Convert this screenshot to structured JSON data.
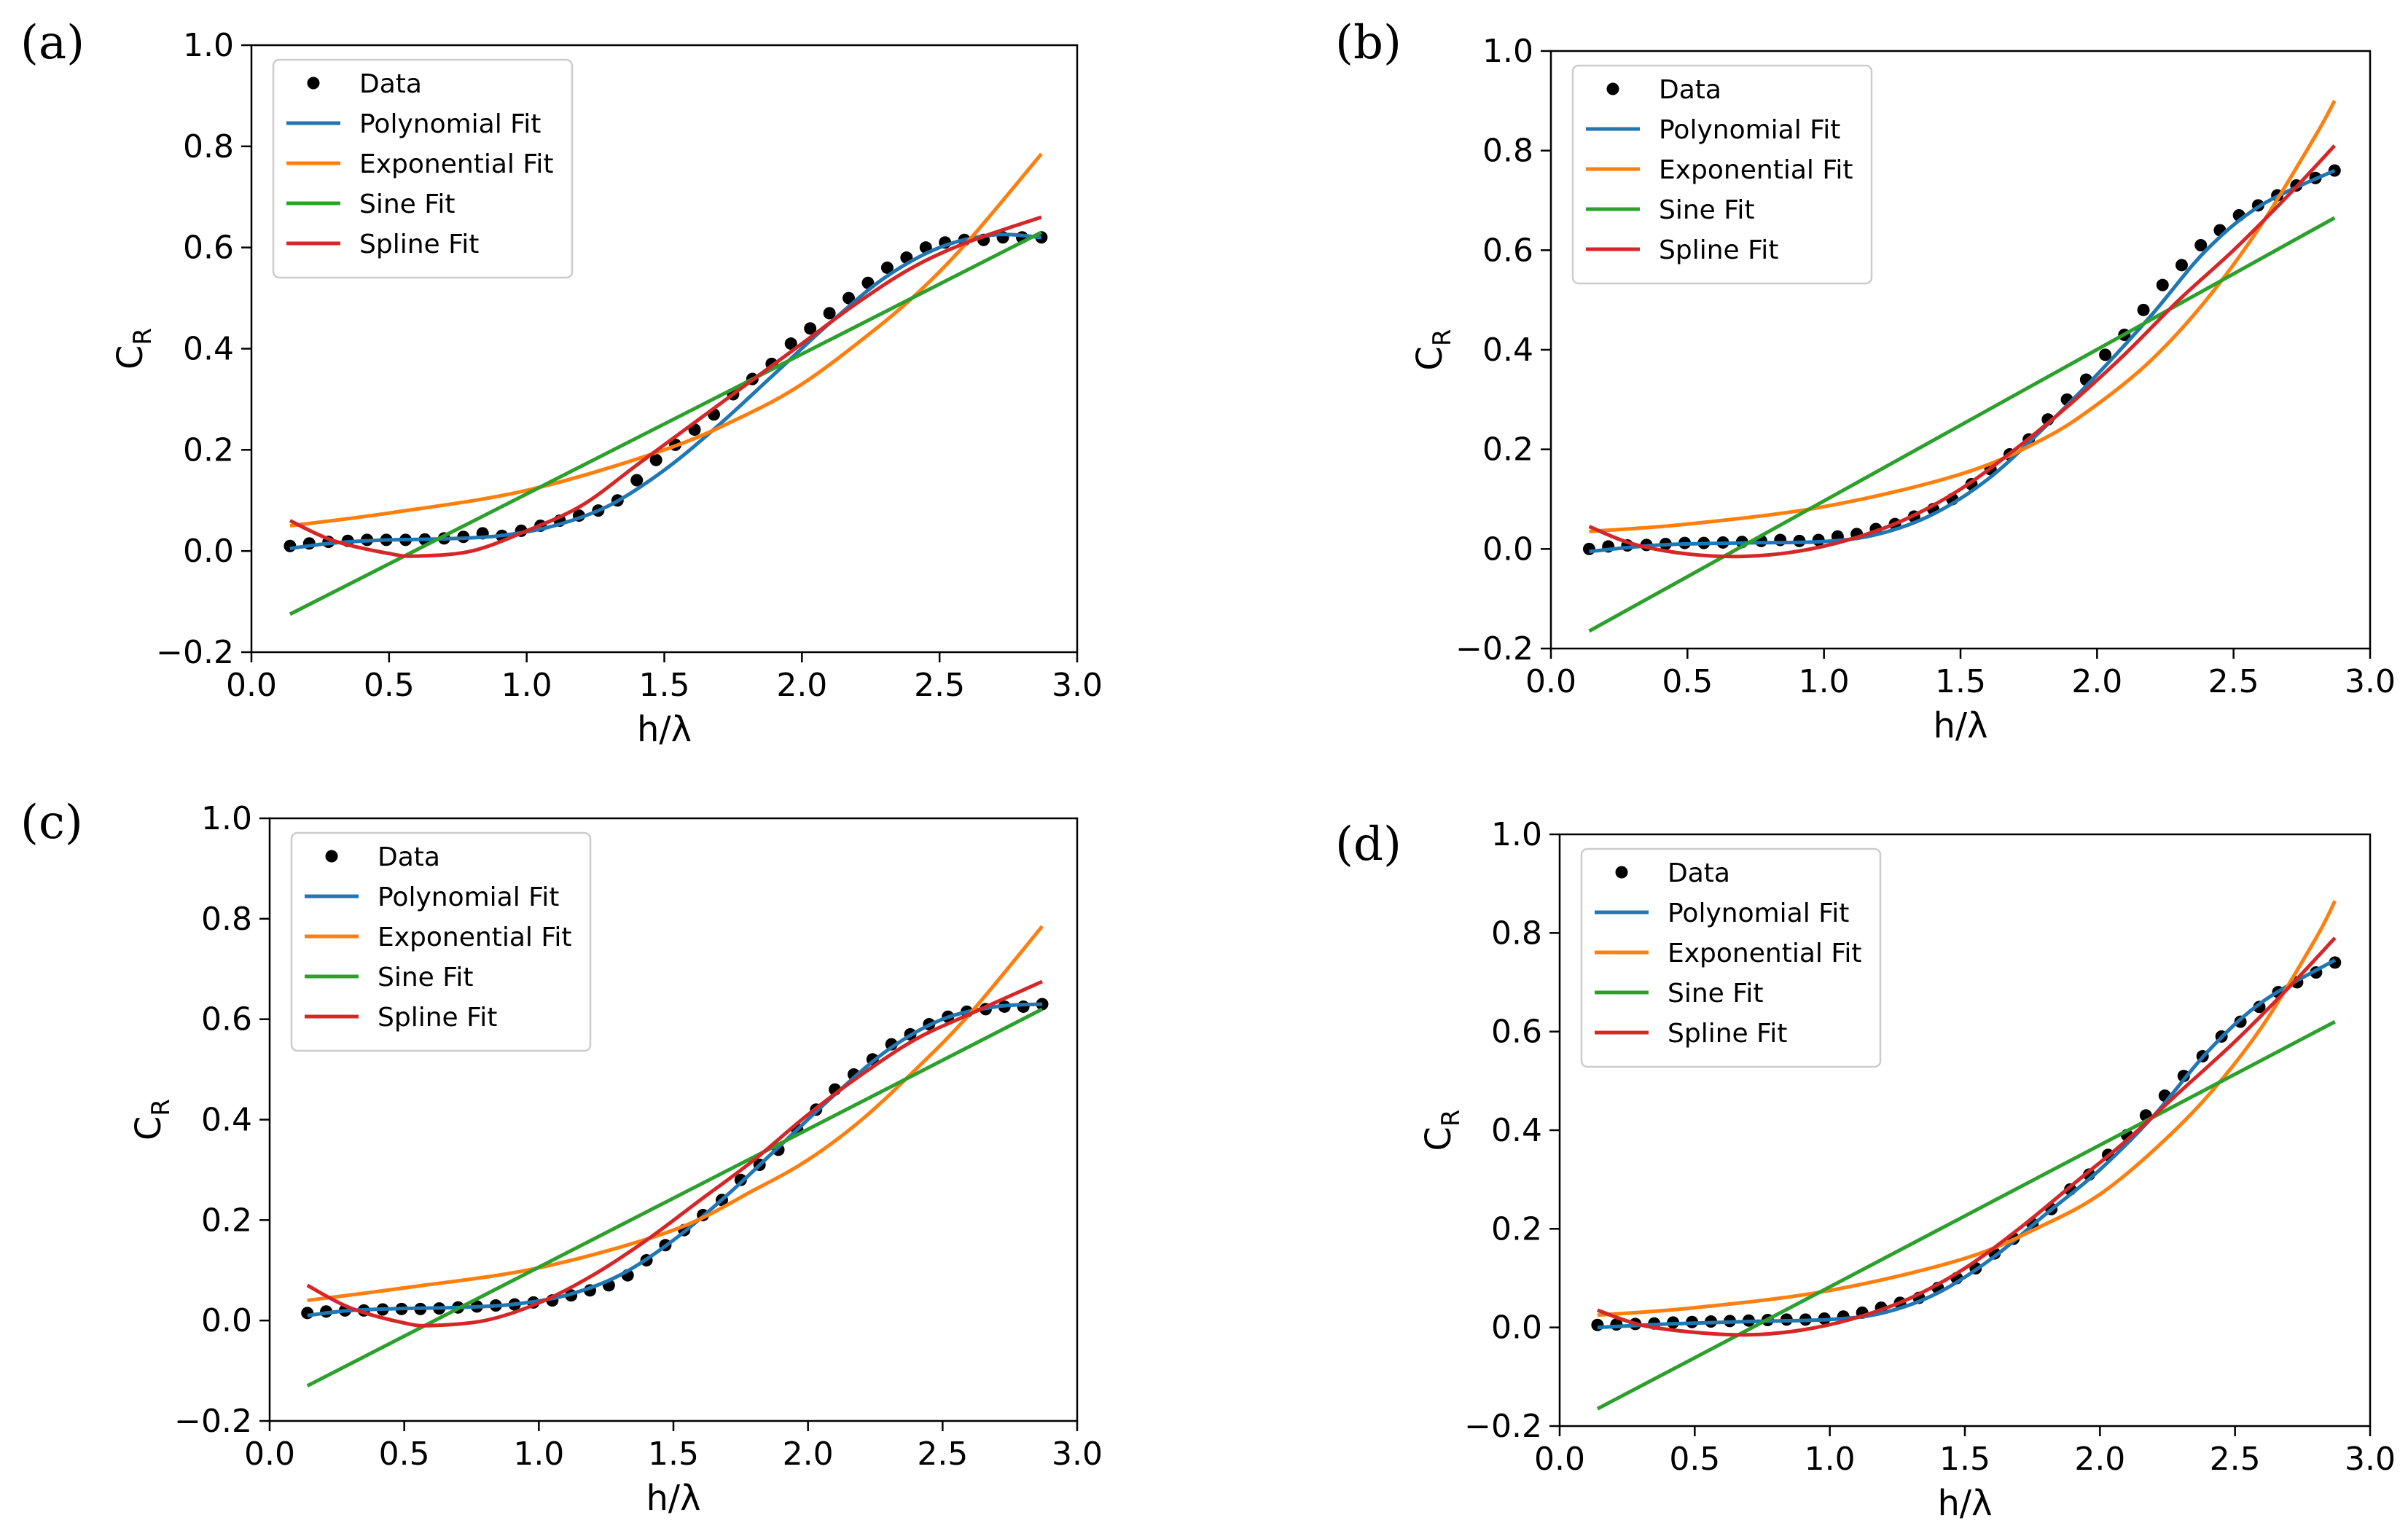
{
  "colors": {
    "data": "#000000",
    "polynomial": "#1f77b4",
    "exponential": "#ff7f0e",
    "sine": "#2ca02c",
    "spline": "#d62728",
    "legend_border": "#cccccc"
  },
  "chart_data": [
    {
      "panel": "(a)",
      "type": "line",
      "xlabel": "h/λ",
      "ylabel_main": "C",
      "ylabel_sub": "R",
      "xlim": [
        0.0,
        3.0
      ],
      "ylim": [
        -0.2,
        1.0
      ],
      "xticks": [
        0.0,
        0.5,
        1.0,
        1.5,
        2.0,
        2.5,
        3.0
      ],
      "yticks": [
        -0.2,
        0.0,
        0.2,
        0.4,
        0.6,
        0.8,
        1.0
      ],
      "xtick_labels": [
        "0.0",
        "0.5",
        "1.0",
        "1.5",
        "2.0",
        "2.5",
        "3.0"
      ],
      "ytick_labels": [
        "−0.2",
        "0.0",
        "0.2",
        "0.4",
        "0.6",
        "0.8",
        "1.0"
      ],
      "legend": [
        "Data",
        "Polynomial Fit",
        "Exponential Fit",
        "Sine Fit",
        "Spline Fit"
      ],
      "legend_position": "upper-left",
      "data_x": [
        0.14,
        0.21,
        0.28,
        0.35,
        0.42,
        0.49,
        0.56,
        0.63,
        0.7,
        0.77,
        0.84,
        0.91,
        0.98,
        1.05,
        1.12,
        1.19,
        1.26,
        1.33,
        1.4,
        1.47,
        1.54,
        1.61,
        1.68,
        1.75,
        1.82,
        1.89,
        1.96,
        2.03,
        2.1,
        2.17,
        2.24,
        2.31,
        2.38,
        2.45,
        2.52,
        2.59,
        2.66,
        2.73,
        2.8,
        2.87
      ],
      "data_y": [
        0.01,
        0.015,
        0.018,
        0.02,
        0.022,
        0.022,
        0.022,
        0.023,
        0.025,
        0.028,
        0.035,
        0.03,
        0.04,
        0.05,
        0.06,
        0.07,
        0.08,
        0.1,
        0.14,
        0.18,
        0.21,
        0.24,
        0.27,
        0.31,
        0.34,
        0.37,
        0.41,
        0.44,
        0.47,
        0.5,
        0.53,
        0.56,
        0.58,
        0.6,
        0.61,
        0.615,
        0.615,
        0.62,
        0.62,
        0.62
      ],
      "series": [
        {
          "name": "Polynomial Fit",
          "x": [
            0.14,
            0.3,
            0.5,
            0.7,
            0.9,
            1.1,
            1.3,
            1.5,
            1.7,
            1.9,
            2.1,
            2.3,
            2.5,
            2.7,
            2.87
          ],
          "y": [
            0.005,
            0.016,
            0.022,
            0.024,
            0.03,
            0.05,
            0.09,
            0.16,
            0.25,
            0.35,
            0.45,
            0.54,
            0.6,
            0.625,
            0.62
          ]
        },
        {
          "name": "Exponential Fit",
          "x": [
            0.14,
            0.5,
            1.0,
            1.5,
            1.8,
            2.0,
            2.2,
            2.4,
            2.6,
            2.87
          ],
          "y": [
            0.05,
            0.075,
            0.12,
            0.2,
            0.27,
            0.33,
            0.41,
            0.5,
            0.61,
            0.785
          ]
        },
        {
          "name": "Sine Fit",
          "x": [
            0.14,
            2.87
          ],
          "y": [
            -0.125,
            0.63
          ]
        },
        {
          "name": "Spline Fit",
          "x": [
            0.14,
            0.3,
            0.5,
            0.6,
            0.8,
            1.0,
            1.2,
            1.4,
            1.6,
            1.8,
            2.0,
            2.2,
            2.4,
            2.6,
            2.87
          ],
          "y": [
            0.06,
            0.02,
            -0.005,
            -0.01,
            0.0,
            0.04,
            0.09,
            0.17,
            0.25,
            0.33,
            0.41,
            0.49,
            0.56,
            0.61,
            0.66
          ]
        }
      ]
    },
    {
      "panel": "(b)",
      "type": "line",
      "xlabel": "h/λ",
      "ylabel_main": "C",
      "ylabel_sub": "R",
      "xlim": [
        0.0,
        3.0
      ],
      "ylim": [
        -0.2,
        1.0
      ],
      "xticks": [
        0.0,
        0.5,
        1.0,
        1.5,
        2.0,
        2.5,
        3.0
      ],
      "yticks": [
        -0.2,
        0.0,
        0.2,
        0.4,
        0.6,
        0.8,
        1.0
      ],
      "xtick_labels": [
        "0.0",
        "0.5",
        "1.0",
        "1.5",
        "2.0",
        "2.5",
        "3.0"
      ],
      "ytick_labels": [
        "−0.2",
        "0.0",
        "0.2",
        "0.4",
        "0.6",
        "0.8",
        "1.0"
      ],
      "legend": [
        "Data",
        "Polynomial Fit",
        "Exponential Fit",
        "Sine Fit",
        "Spline Fit"
      ],
      "legend_position": "upper-left",
      "data_x": [
        0.14,
        0.21,
        0.28,
        0.35,
        0.42,
        0.49,
        0.56,
        0.63,
        0.7,
        0.77,
        0.84,
        0.91,
        0.98,
        1.05,
        1.12,
        1.19,
        1.26,
        1.33,
        1.4,
        1.47,
        1.54,
        1.61,
        1.68,
        1.75,
        1.82,
        1.89,
        1.96,
        2.03,
        2.1,
        2.17,
        2.24,
        2.31,
        2.38,
        2.45,
        2.52,
        2.59,
        2.66,
        2.73,
        2.8,
        2.87
      ],
      "data_y": [
        0.0,
        0.005,
        0.007,
        0.008,
        0.01,
        0.012,
        0.012,
        0.013,
        0.014,
        0.016,
        0.018,
        0.016,
        0.018,
        0.025,
        0.03,
        0.04,
        0.05,
        0.065,
        0.08,
        0.1,
        0.13,
        0.16,
        0.19,
        0.22,
        0.26,
        0.3,
        0.34,
        0.39,
        0.43,
        0.48,
        0.53,
        0.57,
        0.61,
        0.64,
        0.67,
        0.69,
        0.71,
        0.73,
        0.745,
        0.76
      ],
      "series": [
        {
          "name": "Polynomial Fit",
          "x": [
            0.14,
            0.4,
            0.7,
            1.0,
            1.2,
            1.4,
            1.6,
            1.8,
            2.0,
            2.2,
            2.4,
            2.6,
            2.87
          ],
          "y": [
            -0.005,
            0.008,
            0.012,
            0.015,
            0.03,
            0.07,
            0.14,
            0.24,
            0.35,
            0.47,
            0.6,
            0.69,
            0.76
          ]
        },
        {
          "name": "Exponential Fit",
          "x": [
            0.14,
            0.5,
            1.0,
            1.5,
            1.8,
            2.0,
            2.2,
            2.4,
            2.6,
            2.8,
            2.87
          ],
          "y": [
            0.035,
            0.05,
            0.085,
            0.15,
            0.22,
            0.29,
            0.38,
            0.5,
            0.65,
            0.83,
            0.9
          ]
        },
        {
          "name": "Sine Fit",
          "x": [
            0.14,
            2.87
          ],
          "y": [
            -0.165,
            0.665
          ]
        },
        {
          "name": "Spline Fit",
          "x": [
            0.14,
            0.3,
            0.5,
            0.7,
            0.9,
            1.1,
            1.3,
            1.5,
            1.7,
            1.9,
            2.1,
            2.3,
            2.5,
            2.7,
            2.87
          ],
          "y": [
            0.045,
            0.01,
            -0.01,
            -0.015,
            -0.005,
            0.02,
            0.06,
            0.12,
            0.2,
            0.29,
            0.39,
            0.5,
            0.6,
            0.71,
            0.81
          ]
        }
      ]
    },
    {
      "panel": "(c)",
      "type": "line",
      "xlabel": "h/λ",
      "ylabel_main": "C",
      "ylabel_sub": "R",
      "xlim": [
        0.0,
        3.0
      ],
      "ylim": [
        -0.2,
        1.0
      ],
      "xticks": [
        0.0,
        0.5,
        1.0,
        1.5,
        2.0,
        2.5,
        3.0
      ],
      "yticks": [
        -0.2,
        0.0,
        0.2,
        0.4,
        0.6,
        0.8,
        1.0
      ],
      "xtick_labels": [
        "0.0",
        "0.5",
        "1.0",
        "1.5",
        "2.0",
        "2.5",
        "3.0"
      ],
      "ytick_labels": [
        "−0.2",
        "0.0",
        "0.2",
        "0.4",
        "0.6",
        "0.8",
        "1.0"
      ],
      "legend": [
        "Data",
        "Polynomial Fit",
        "Exponential Fit",
        "Sine Fit",
        "Spline Fit"
      ],
      "legend_position": "upper-left",
      "data_x": [
        0.14,
        0.21,
        0.28,
        0.35,
        0.42,
        0.49,
        0.56,
        0.63,
        0.7,
        0.77,
        0.84,
        0.91,
        0.98,
        1.05,
        1.12,
        1.19,
        1.26,
        1.33,
        1.4,
        1.47,
        1.54,
        1.61,
        1.68,
        1.75,
        1.82,
        1.89,
        1.96,
        2.03,
        2.1,
        2.17,
        2.24,
        2.31,
        2.38,
        2.45,
        2.52,
        2.59,
        2.66,
        2.73,
        2.8,
        2.87
      ],
      "data_y": [
        0.015,
        0.018,
        0.02,
        0.02,
        0.022,
        0.023,
        0.023,
        0.024,
        0.026,
        0.028,
        0.03,
        0.032,
        0.036,
        0.04,
        0.05,
        0.06,
        0.07,
        0.09,
        0.12,
        0.15,
        0.18,
        0.21,
        0.24,
        0.28,
        0.31,
        0.34,
        0.38,
        0.42,
        0.46,
        0.49,
        0.52,
        0.55,
        0.57,
        0.59,
        0.605,
        0.615,
        0.62,
        0.625,
        0.625,
        0.63
      ],
      "series": [
        {
          "name": "Polynomial Fit",
          "x": [
            0.14,
            0.3,
            0.5,
            0.7,
            0.9,
            1.1,
            1.3,
            1.5,
            1.7,
            1.9,
            2.1,
            2.3,
            2.5,
            2.7,
            2.87
          ],
          "y": [
            0.01,
            0.02,
            0.024,
            0.026,
            0.032,
            0.05,
            0.09,
            0.16,
            0.25,
            0.35,
            0.45,
            0.54,
            0.6,
            0.625,
            0.63
          ]
        },
        {
          "name": "Exponential Fit",
          "x": [
            0.14,
            0.5,
            1.0,
            1.5,
            1.8,
            2.0,
            2.2,
            2.4,
            2.6,
            2.87
          ],
          "y": [
            0.04,
            0.065,
            0.105,
            0.18,
            0.26,
            0.32,
            0.4,
            0.5,
            0.61,
            0.785
          ]
        },
        {
          "name": "Sine Fit",
          "x": [
            0.14,
            2.87
          ],
          "y": [
            -0.13,
            0.62
          ]
        },
        {
          "name": "Spline Fit",
          "x": [
            0.14,
            0.3,
            0.5,
            0.6,
            0.8,
            1.0,
            1.2,
            1.4,
            1.6,
            1.8,
            2.0,
            2.2,
            2.4,
            2.6,
            2.87
          ],
          "y": [
            0.07,
            0.025,
            -0.005,
            -0.01,
            0.0,
            0.035,
            0.09,
            0.16,
            0.24,
            0.32,
            0.41,
            0.49,
            0.56,
            0.61,
            0.675
          ]
        }
      ]
    },
    {
      "panel": "(d)",
      "type": "line",
      "xlabel": "h/λ",
      "ylabel_main": "C",
      "ylabel_sub": "R",
      "xlim": [
        0.0,
        3.0
      ],
      "ylim": [
        -0.2,
        1.0
      ],
      "xticks": [
        0.0,
        0.5,
        1.0,
        1.5,
        2.0,
        2.5,
        3.0
      ],
      "yticks": [
        -0.2,
        0.0,
        0.2,
        0.4,
        0.6,
        0.8,
        1.0
      ],
      "xtick_labels": [
        "0.0",
        "0.5",
        "1.0",
        "1.5",
        "2.0",
        "2.5",
        "3.0"
      ],
      "ytick_labels": [
        "−0.2",
        "0.0",
        "0.2",
        "0.4",
        "0.6",
        "0.8",
        "1.0"
      ],
      "legend": [
        "Data",
        "Polynomial Fit",
        "Exponential Fit",
        "Sine Fit",
        "Spline Fit"
      ],
      "legend_position": "upper-left",
      "data_x": [
        0.14,
        0.21,
        0.28,
        0.35,
        0.42,
        0.49,
        0.56,
        0.63,
        0.7,
        0.77,
        0.84,
        0.91,
        0.98,
        1.05,
        1.12,
        1.19,
        1.26,
        1.33,
        1.4,
        1.47,
        1.54,
        1.61,
        1.68,
        1.75,
        1.82,
        1.89,
        1.96,
        2.03,
        2.1,
        2.17,
        2.24,
        2.31,
        2.38,
        2.45,
        2.52,
        2.59,
        2.66,
        2.73,
        2.8,
        2.87
      ],
      "data_y": [
        0.005,
        0.006,
        0.007,
        0.008,
        0.01,
        0.011,
        0.012,
        0.013,
        0.014,
        0.015,
        0.016,
        0.016,
        0.018,
        0.022,
        0.03,
        0.04,
        0.05,
        0.06,
        0.08,
        0.1,
        0.12,
        0.15,
        0.18,
        0.21,
        0.24,
        0.28,
        0.31,
        0.35,
        0.39,
        0.43,
        0.47,
        0.51,
        0.55,
        0.59,
        0.62,
        0.65,
        0.68,
        0.7,
        0.72,
        0.74
      ],
      "series": [
        {
          "name": "Polynomial Fit",
          "x": [
            0.14,
            0.4,
            0.7,
            1.0,
            1.2,
            1.4,
            1.6,
            1.8,
            2.0,
            2.2,
            2.4,
            2.6,
            2.87
          ],
          "y": [
            0.0,
            0.007,
            0.012,
            0.016,
            0.03,
            0.07,
            0.14,
            0.23,
            0.32,
            0.43,
            0.56,
            0.66,
            0.745
          ]
        },
        {
          "name": "Exponential Fit",
          "x": [
            0.14,
            0.5,
            1.0,
            1.5,
            1.8,
            2.0,
            2.2,
            2.4,
            2.6,
            2.8,
            2.87
          ],
          "y": [
            0.025,
            0.04,
            0.075,
            0.14,
            0.21,
            0.27,
            0.36,
            0.47,
            0.61,
            0.79,
            0.865
          ]
        },
        {
          "name": "Sine Fit",
          "x": [
            0.14,
            2.87
          ],
          "y": [
            -0.165,
            0.62
          ]
        },
        {
          "name": "Spline Fit",
          "x": [
            0.14,
            0.3,
            0.5,
            0.7,
            0.9,
            1.1,
            1.3,
            1.5,
            1.7,
            1.9,
            2.1,
            2.3,
            2.5,
            2.7,
            2.87
          ],
          "y": [
            0.035,
            0.005,
            -0.01,
            -0.015,
            -0.005,
            0.02,
            0.06,
            0.12,
            0.2,
            0.29,
            0.38,
            0.48,
            0.58,
            0.69,
            0.79
          ]
        }
      ]
    }
  ]
}
